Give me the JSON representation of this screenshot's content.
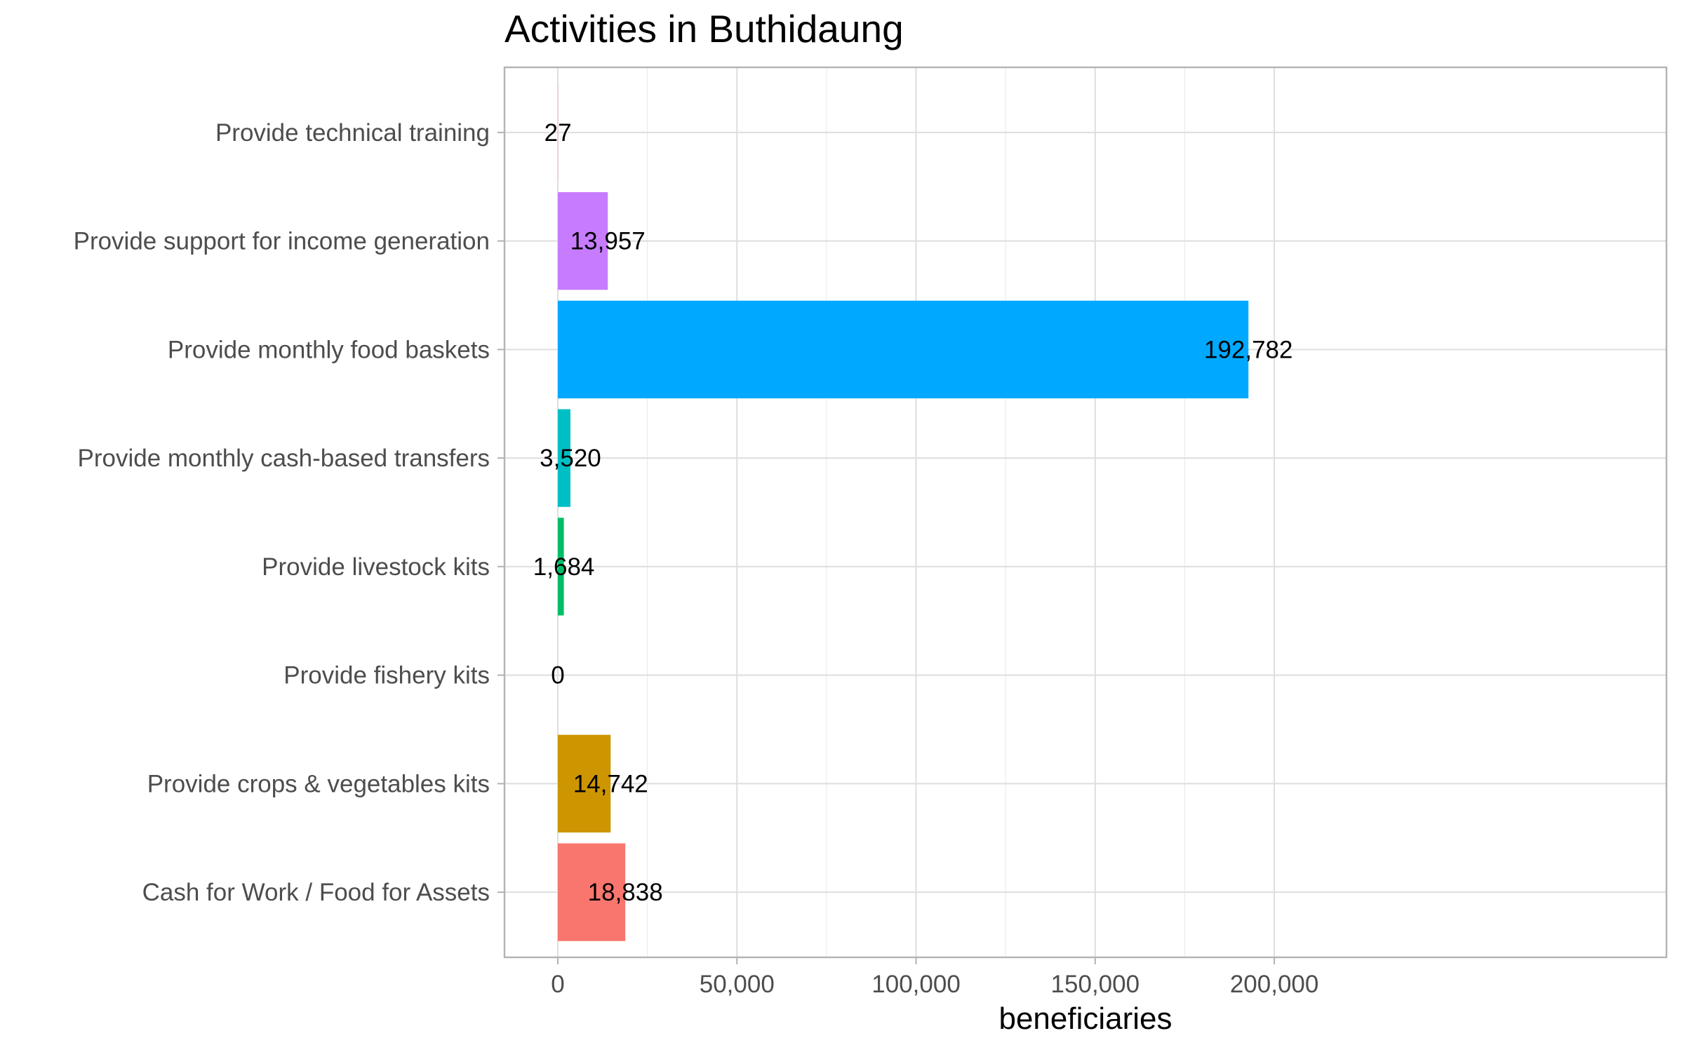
{
  "chart_data": {
    "type": "bar",
    "orientation": "horizontal",
    "title": "Activities in Buthidaung",
    "xlabel": "beneficiaries",
    "ylabel": "",
    "xlim": [
      0,
      200000
    ],
    "x_ticks": [
      0,
      50000,
      100000,
      150000,
      200000
    ],
    "x_tick_labels": [
      "0",
      "50,000",
      "100,000",
      "150,000",
      "200,000"
    ],
    "grid": true,
    "legend": "none",
    "categories": [
      "Provide technical training",
      "Provide support for income generation",
      "Provide monthly food baskets",
      "Provide monthly cash-based transfers",
      "Provide livestock kits",
      "Provide fishery kits",
      "Provide crops & vegetables kits",
      "Cash for Work / Food for Assets"
    ],
    "values": [
      27,
      13957,
      192782,
      3520,
      1684,
      0,
      14742,
      18838
    ],
    "value_labels": [
      "27",
      "13,957",
      "192,782",
      "3,520",
      "1,684",
      "0",
      "14,742",
      "18,838"
    ],
    "colors": [
      "#FF61C3",
      "#C77CFF",
      "#00A9FF",
      "#00BFC4",
      "#00BE67",
      "#7CAE00",
      "#CD9600",
      "#F8766D"
    ]
  }
}
